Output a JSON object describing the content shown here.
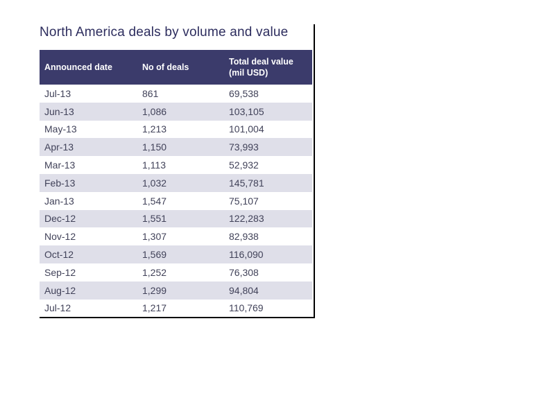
{
  "title": "North America deals by volume and value",
  "colors": {
    "header_bg": "#3B3B6B",
    "header_text": "#FFFFFF",
    "stripe_bg": "#DFDFE9",
    "row_bg": "#FFFFFF",
    "title_text": "#2D2D5E",
    "cell_text": "#414259",
    "frame_border": "#000000"
  },
  "chart_data": {
    "type": "table",
    "title": "North America deals by volume and value",
    "columns": [
      "Announced date",
      "No of deals",
      "Total deal value (mil USD)"
    ],
    "rows": [
      [
        "Jul-13",
        "861",
        "69,538"
      ],
      [
        "Jun-13",
        "1,086",
        "103,105"
      ],
      [
        "May-13",
        "1,213",
        "101,004"
      ],
      [
        "Apr-13",
        "1,150",
        "73,993"
      ],
      [
        "Mar-13",
        "1,113",
        "52,932"
      ],
      [
        "Feb-13",
        "1,032",
        "145,781"
      ],
      [
        "Jan-13",
        "1,547",
        "75,107"
      ],
      [
        "Dec-12",
        "1,551",
        "122,283"
      ],
      [
        "Nov-12",
        "1,307",
        "82,938"
      ],
      [
        "Oct-12",
        "1,569",
        "116,090"
      ],
      [
        "Sep-12",
        "1,252",
        "76,308"
      ],
      [
        "Aug-12",
        "1,299",
        "94,804"
      ],
      [
        "Jul-12",
        "1,217",
        "110,769"
      ]
    ],
    "layout": {
      "striped": true,
      "stripe_rule": "rows alternate white / lavender starting with white",
      "header_style": "solid navy band, white bold text",
      "frame": "black 2px border on right and bottom edges only",
      "alignment": "all columns left-aligned"
    }
  }
}
